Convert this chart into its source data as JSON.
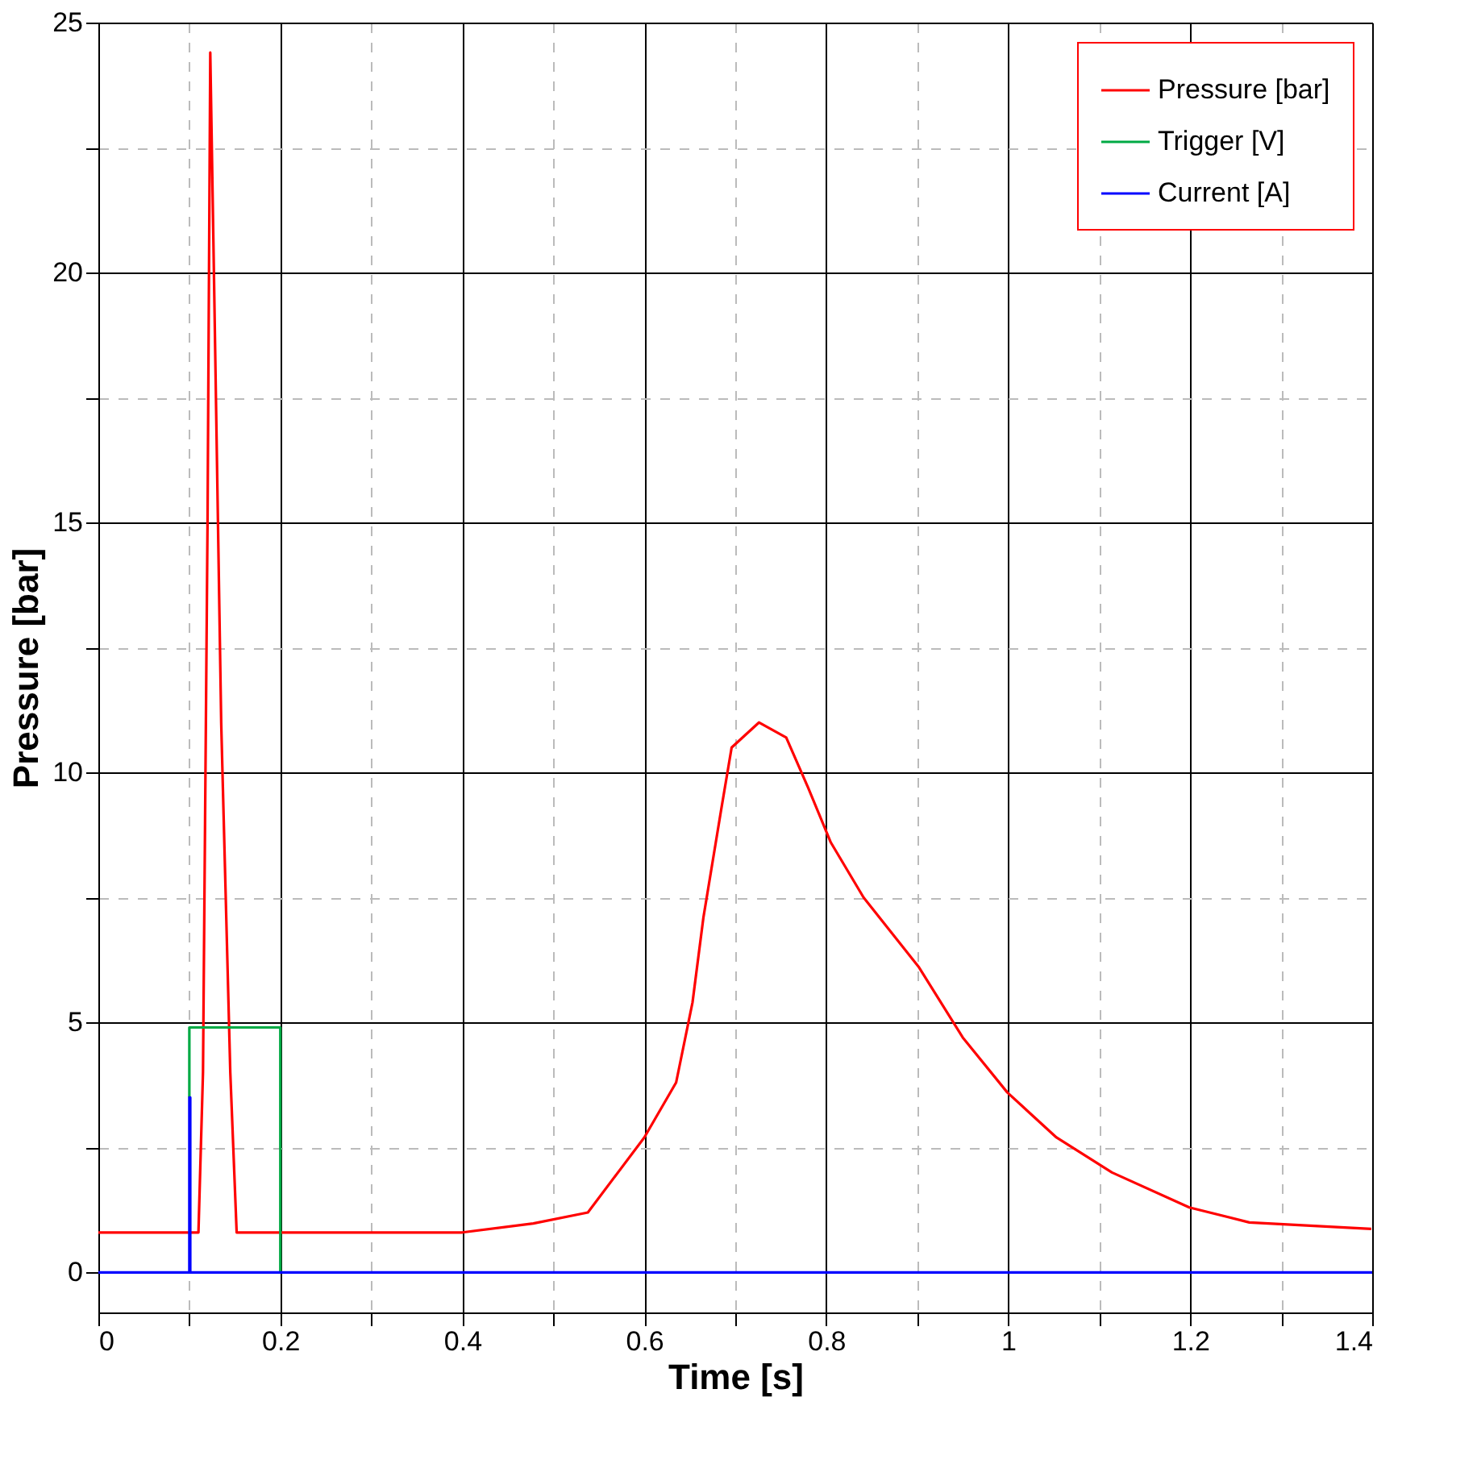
{
  "chart_data": {
    "type": "line",
    "xlabel": "Time [s]",
    "ylabel": "Pressure [bar]",
    "xlim": [
      0,
      1.4
    ],
    "ylim": [
      -0.8,
      25
    ],
    "xticks": [
      0,
      {
        "value": 0.1,
        "label": null
      },
      0.2,
      {
        "value": 0.3,
        "label": null
      },
      0.4,
      {
        "value": 0.5,
        "label": null
      },
      0.6,
      {
        "value": 0.7,
        "label": null
      },
      0.8,
      {
        "value": 0.9,
        "label": null
      },
      1,
      {
        "value": 1.1,
        "label": null
      },
      1.2,
      {
        "value": 1.3,
        "label": null
      },
      1.4
    ],
    "yticks": [
      0,
      {
        "value": 2.5,
        "label": null
      },
      5,
      {
        "value": 7.5,
        "label": null
      },
      10,
      {
        "value": 12.5,
        "label": null
      },
      15,
      {
        "value": 17.5,
        "label": null
      },
      20,
      {
        "value": 22.5,
        "label": null
      },
      25
    ],
    "grid": true,
    "legend": "top right",
    "line_style": "solid",
    "marker": "none",
    "series": [
      {
        "name": "Pressure [bar]",
        "color": "#ff0000",
        "x": [
          0,
          0.05,
          0.11,
          0.115,
          0.12,
          0.123,
          0.127,
          0.135,
          0.145,
          0.152,
          0.2,
          0.3,
          0.4,
          0.478,
          0.538,
          0.6,
          0.635,
          0.653,
          0.665,
          0.684,
          0.696,
          0.726,
          0.756,
          0.78,
          0.805,
          0.841,
          0.902,
          0.95,
          0.999,
          1.053,
          1.114,
          1.199,
          1.265,
          1.399
        ],
        "values": [
          0.8,
          0.8,
          0.8,
          4,
          15,
          24.4,
          20,
          11,
          4,
          0.8,
          0.8,
          0.8,
          0.8,
          0.98,
          1.2,
          2.7,
          3.8,
          5.4,
          7.1,
          9.2,
          10.5,
          11.0,
          10.7,
          9.7,
          8.6,
          7.5,
          6.1,
          4.7,
          3.6,
          2.7,
          2.0,
          1.3,
          1.0,
          0.87
        ]
      },
      {
        "name": "Trigger [V]",
        "color": "#00aa44",
        "x": [
          0.1,
          0.1,
          0.2,
          0.2
        ],
        "values": [
          3.5,
          4.9,
          4.9,
          0
        ]
      },
      {
        "name": "Current [A]",
        "color": "#0000ff",
        "x": [
          0,
          0.1,
          0.1,
          0.101,
          0.101,
          1.4
        ],
        "values": [
          0,
          0,
          3.5,
          3.5,
          0,
          0
        ]
      }
    ]
  }
}
